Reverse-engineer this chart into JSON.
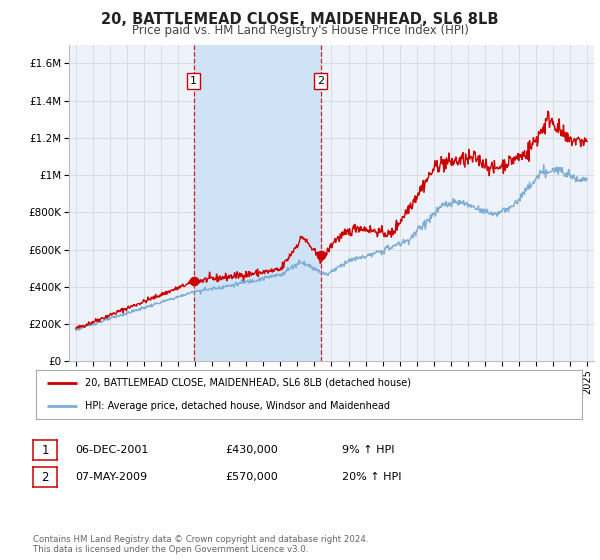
{
  "title": "20, BATTLEMEAD CLOSE, MAIDENHEAD, SL6 8LB",
  "subtitle": "Price paid vs. HM Land Registry's House Price Index (HPI)",
  "background_color": "#ffffff",
  "plot_bg_color": "#eef3fb",
  "grid_color": "#d8d8d8",
  "red_line_color": "#cc0000",
  "blue_line_color": "#7dadd4",
  "shade_color": "#d0e2f5",
  "dashed_line_color": "#cc0000",
  "marker1_x": 2001.92,
  "marker1_y": 430000,
  "marker2_x": 2009.36,
  "marker2_y": 570000,
  "legend_label_red": "20, BATTLEMEAD CLOSE, MAIDENHEAD, SL6 8LB (detached house)",
  "legend_label_blue": "HPI: Average price, detached house, Windsor and Maidenhead",
  "table_row1": [
    "1",
    "06-DEC-2001",
    "£430,000",
    "9% ↑ HPI"
  ],
  "table_row2": [
    "2",
    "07-MAY-2009",
    "£570,000",
    "20% ↑ HPI"
  ],
  "footer": "Contains HM Land Registry data © Crown copyright and database right 2024.\nThis data is licensed under the Open Government Licence v3.0.",
  "ylim": [
    0,
    1700000
  ],
  "xlim_start": 1994.6,
  "xlim_end": 2025.4,
  "yticks": [
    0,
    200000,
    400000,
    600000,
    800000,
    1000000,
    1200000,
    1400000,
    1600000
  ],
  "ytick_labels": [
    "£0",
    "£200K",
    "£400K",
    "£600K",
    "£800K",
    "£1M",
    "£1.2M",
    "£1.4M",
    "£1.6M"
  ],
  "xticks": [
    1995,
    1996,
    1997,
    1998,
    1999,
    2000,
    2001,
    2002,
    2003,
    2004,
    2005,
    2006,
    2007,
    2008,
    2009,
    2010,
    2011,
    2012,
    2013,
    2014,
    2015,
    2016,
    2017,
    2018,
    2019,
    2020,
    2021,
    2022,
    2023,
    2024,
    2025
  ]
}
